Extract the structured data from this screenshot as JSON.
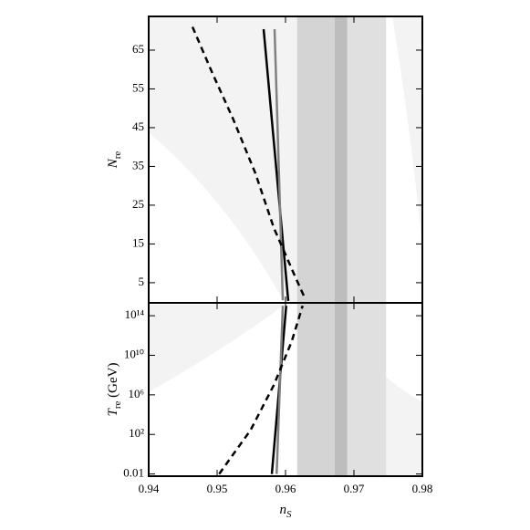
{
  "chart_data": [
    {
      "type": "line",
      "log_y": false,
      "ylabel": {
        "main": "N",
        "sub": "re"
      },
      "xlim": [
        0.94,
        0.98
      ],
      "xticks": [
        0.94,
        0.95,
        0.96,
        0.97,
        0.98
      ],
      "ylim": [
        -0.2,
        73.7
      ],
      "yticks": [
        5,
        15,
        25,
        35,
        45,
        55,
        65
      ],
      "bands": [
        {
          "x0": 0.9617,
          "x1": 0.9672,
          "color": "#d4d4d4"
        },
        {
          "x0": 0.9672,
          "x1": 0.969,
          "color": "#bdbdbd"
        },
        {
          "x0": 0.969,
          "x1": 0.9747,
          "color": "#e0e0e0"
        }
      ],
      "series": [
        {
          "color": "#000000",
          "dash": false,
          "x": [
            0.9568,
            0.9604
          ],
          "values": [
            70.4,
            0.3
          ]
        },
        {
          "color": "#808080",
          "dash": false,
          "x": [
            0.9584,
            0.9596
          ],
          "values": [
            70.4,
            0.5
          ]
        },
        {
          "color": "#000000",
          "dash": true,
          "x": [
            0.9464,
            0.9493,
            0.9523,
            0.9556,
            0.9583,
            0.9612,
            0.9627
          ],
          "values": [
            71,
            59.1,
            47.4,
            33.2,
            19.1,
            7.4,
            1.5
          ]
        }
      ]
    },
    {
      "type": "line",
      "log_y": true,
      "ylabel": {
        "main": "T",
        "sub": "re",
        "rest": " (GeV)"
      },
      "xlabel": {
        "main": "n",
        "sub": "S"
      },
      "xlim": [
        0.94,
        0.98
      ],
      "xticks": [
        0.94,
        0.95,
        0.96,
        0.97,
        0.98
      ],
      "ylim": [
        0.006,
        2000000000000000.0
      ],
      "yticks": [
        0.01,
        {
          "value": 100,
          "label": "10²"
        },
        {
          "value": 1000000,
          "label": "10⁶"
        },
        {
          "value": 10000000000,
          "label": "10¹⁰"
        },
        {
          "value": 100000000000000,
          "label": "10¹⁴"
        }
      ],
      "bands": [
        {
          "x0": 0.9617,
          "x1": 0.9672,
          "color": "#d4d4d4"
        },
        {
          "x0": 0.9672,
          "x1": 0.969,
          "color": "#bdbdbd"
        },
        {
          "x0": 0.969,
          "x1": 0.9747,
          "color": "#e0e0e0"
        }
      ],
      "series": [
        {
          "color": "#000000",
          "dash": false,
          "x": [
            0.958,
            0.9601
          ],
          "values": [
            0.01,
            1000000000000000.0
          ]
        },
        {
          "color": "#808080",
          "dash": false,
          "x": [
            0.9587,
            0.9596
          ],
          "values": [
            0.01,
            1000000000000000.0
          ]
        },
        {
          "color": "#000000",
          "dash": true,
          "x": [
            0.9503,
            0.9549,
            0.9583,
            0.9609,
            0.9625
          ],
          "values": [
            0.01,
            280,
            10000000,
            250000000000,
            1000000000000000.0
          ]
        }
      ]
    }
  ]
}
